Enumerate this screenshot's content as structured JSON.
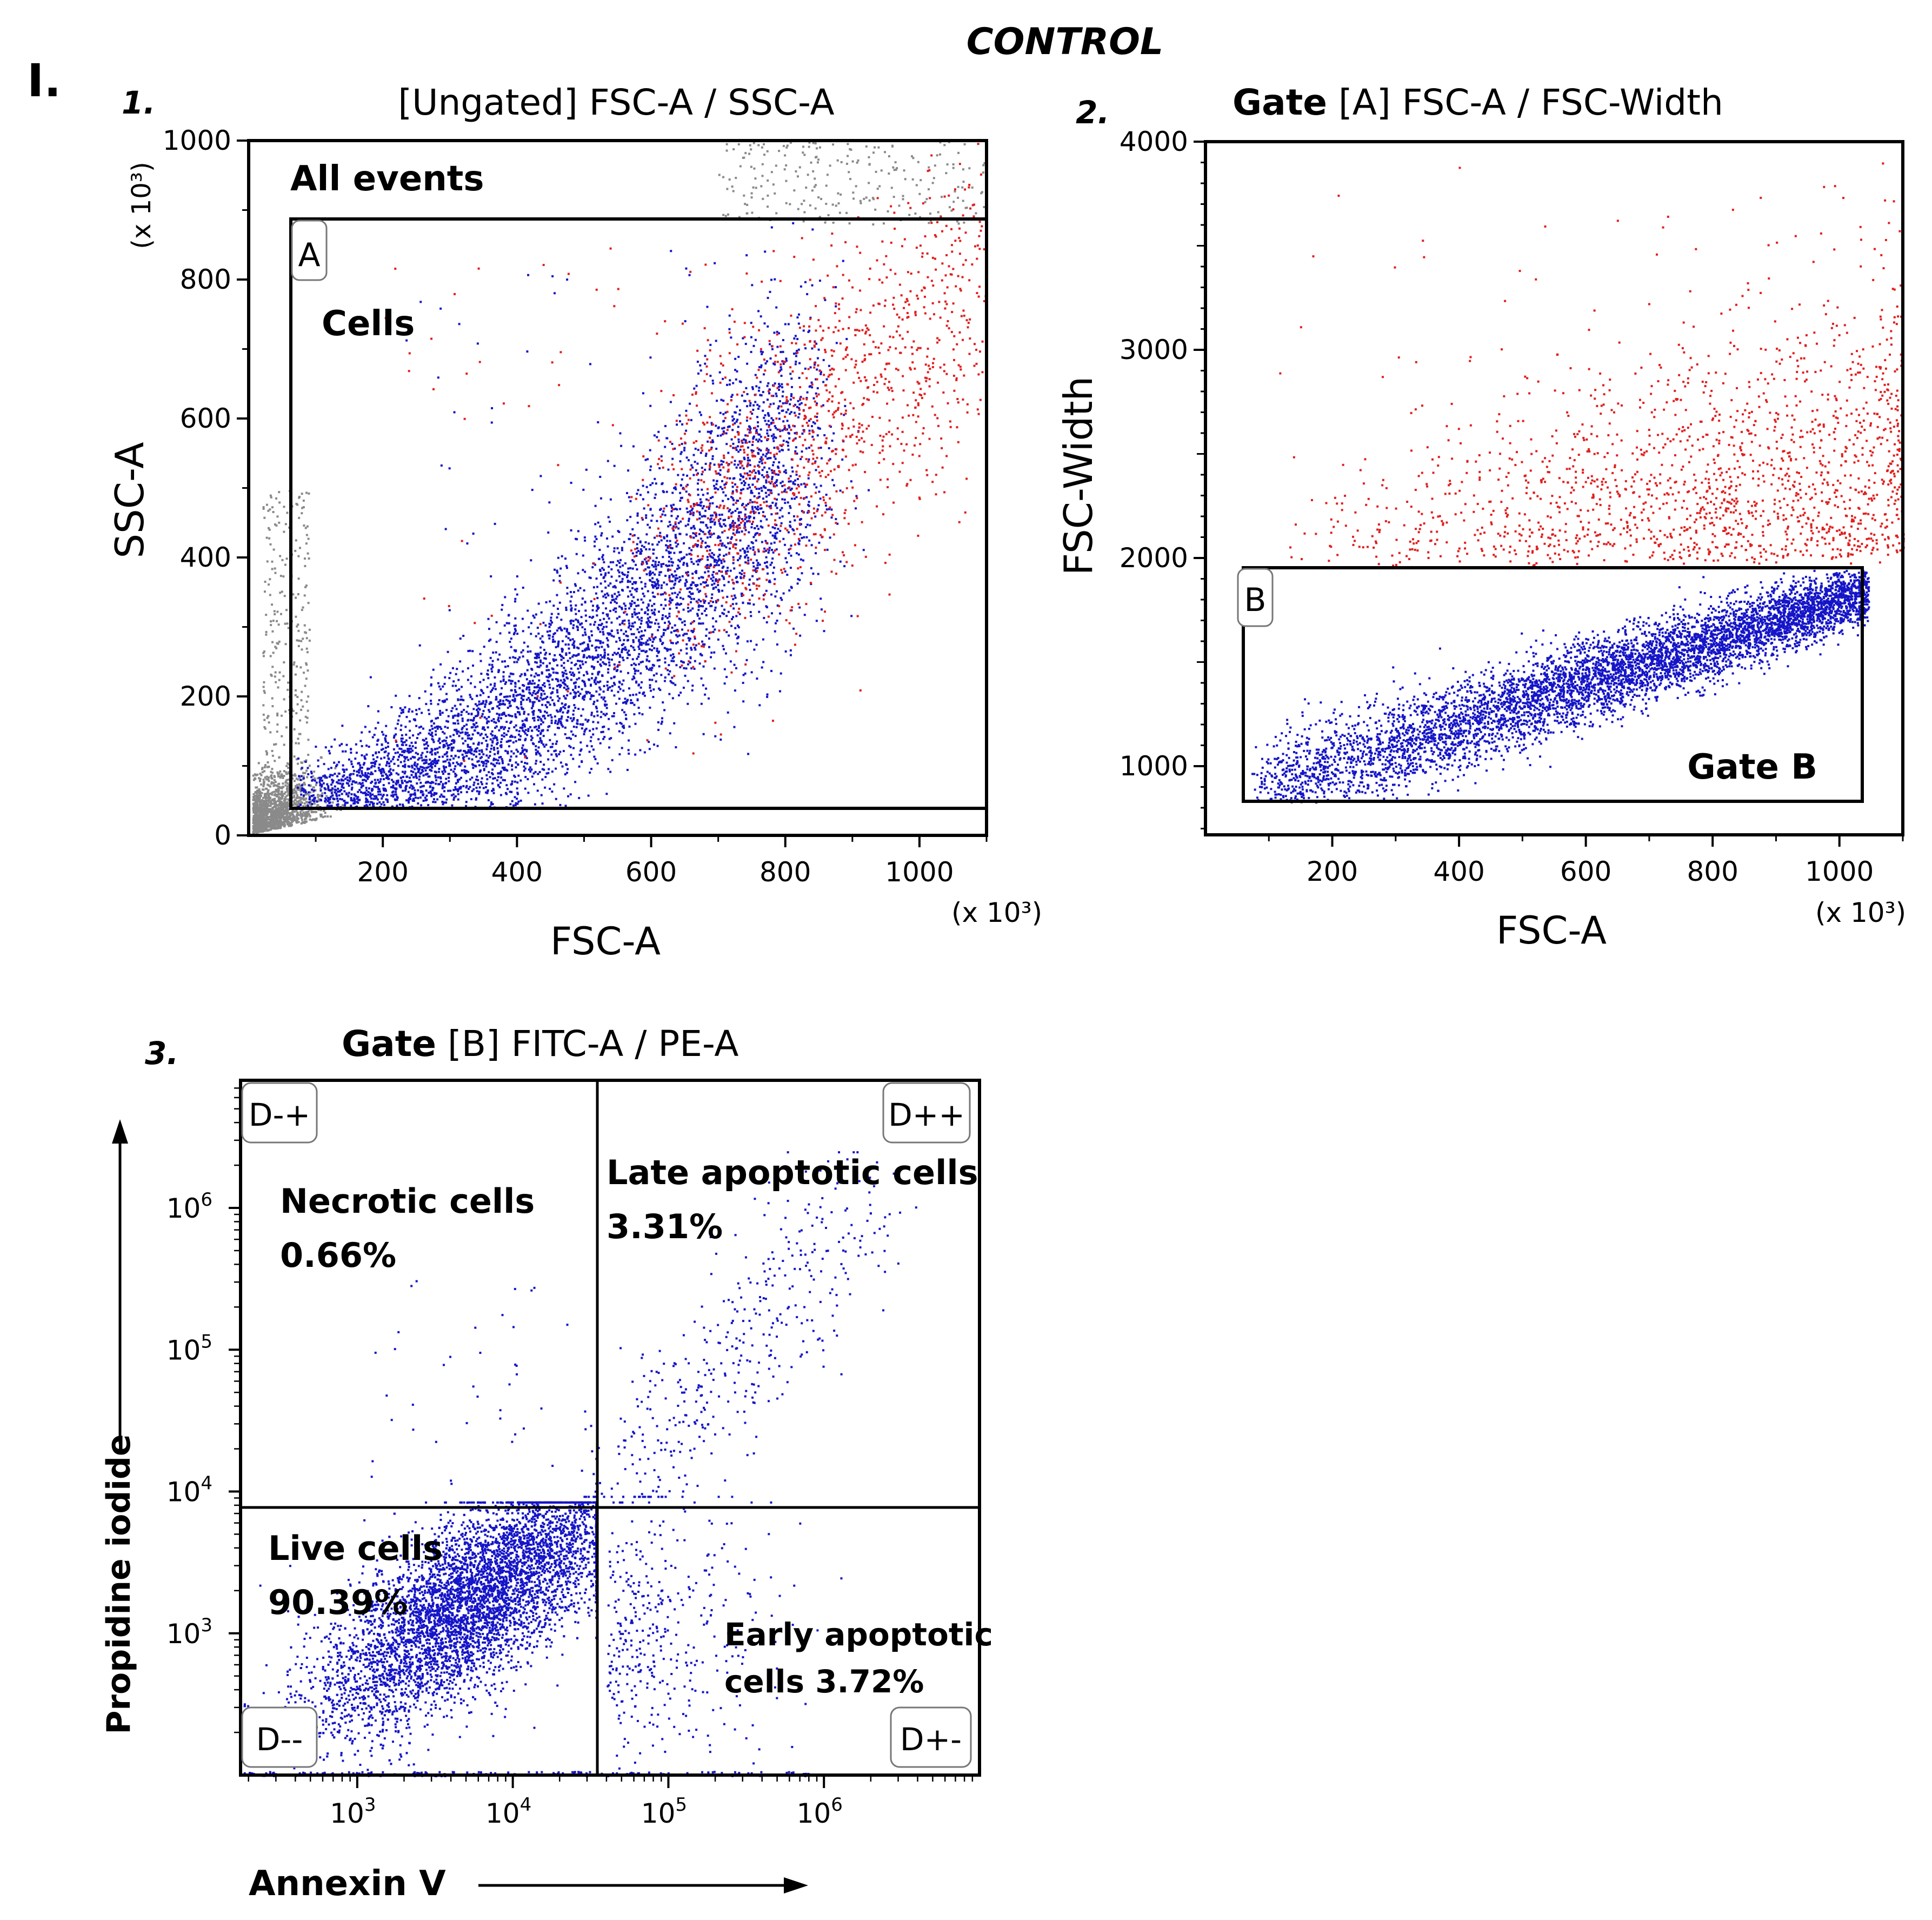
{
  "figure": {
    "title": "CONTROL",
    "panel_label": "I.",
    "colors": {
      "axis": "#000000",
      "gated": "#1515c8",
      "outside": "#e02020",
      "ungated": "#8a8a8a"
    }
  },
  "chart_data": [
    {
      "type": "scatter",
      "panel_number": "1.",
      "title": "[Ungated] FSC-A / SSC-A",
      "xlabel": "FSC-A",
      "ylabel": "SSC-A",
      "x_multiplier": "(x 10³)",
      "y_multiplier": "(x 10³)",
      "xlim": [
        0,
        1100
      ],
      "ylim": [
        0,
        1000
      ],
      "x_ticks": [
        200,
        400,
        600,
        800,
        1000
      ],
      "y_ticks": [
        0,
        200,
        400,
        600,
        800,
        1000
      ],
      "gate": {
        "id": "A",
        "name": "Cells",
        "x_range": [
          65,
          1100
        ],
        "y_range": [
          37,
          885
        ]
      },
      "annotations": [
        "All events",
        "Cells"
      ],
      "series": [
        {
          "name": "Gate A events",
          "color": "blue"
        },
        {
          "name": "High FSC-Width events",
          "color": "red"
        },
        {
          "name": "Ungated debris",
          "color": "gray"
        }
      ]
    },
    {
      "type": "scatter",
      "panel_number": "2.",
      "title_bold": "Gate",
      "title_rest": " [A] FSC-A / FSC-Width",
      "xlabel": "FSC-A",
      "ylabel": "FSC-Width",
      "x_multiplier": "(x 10³)",
      "xlim": [
        0,
        1100
      ],
      "ylim": [
        670,
        4000
      ],
      "x_ticks": [
        200,
        400,
        600,
        800,
        1000
      ],
      "y_ticks": [
        1000,
        2000,
        3000,
        4000
      ],
      "gate": {
        "id": "B",
        "name": "Gate B",
        "x_range": [
          65,
          1045
        ],
        "y_range": [
          805,
          1950
        ]
      },
      "series": [
        {
          "name": "Gate B events",
          "color": "blue"
        },
        {
          "name": "Outside gate B",
          "color": "red"
        }
      ]
    },
    {
      "type": "scatter",
      "panel_number": "3.",
      "title_bold": "Gate",
      "title_rest": " [B] FITC-A / PE-A",
      "xlabel": "Annexin V",
      "ylabel": "Propidine iodide",
      "x_scale": "log",
      "y_scale": "log",
      "x_log_range": [
        2.25,
        7.0
      ],
      "y_log_range": [
        2.0,
        6.9
      ],
      "x_ticks": [
        {
          "base": "10",
          "exp": "3",
          "log": 3
        },
        {
          "base": "10",
          "exp": "4",
          "log": 4
        },
        {
          "base": "10",
          "exp": "5",
          "log": 5
        },
        {
          "base": "10",
          "exp": "6",
          "log": 6
        }
      ],
      "y_ticks": [
        {
          "base": "10",
          "exp": "3",
          "log": 3
        },
        {
          "base": "10",
          "exp": "4",
          "log": 4
        },
        {
          "base": "10",
          "exp": "5",
          "log": 5
        },
        {
          "base": "10",
          "exp": "6",
          "log": 6
        }
      ],
      "quadrant_divider": {
        "x_log": 4.55,
        "y_log": 3.95
      },
      "quadrants": [
        {
          "id": "D-+",
          "label": "Necrotic cells",
          "percent": "0.66%"
        },
        {
          "id": "D++",
          "label": "Late apoptotic cells",
          "percent": "3.31%"
        },
        {
          "id": "D--",
          "label": "Live cells",
          "percent": "90.39%"
        },
        {
          "id": "D+-",
          "label": "Early apoptotic",
          "label2": "cells 3.72%"
        }
      ]
    }
  ]
}
